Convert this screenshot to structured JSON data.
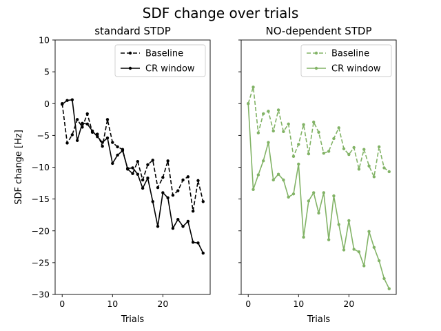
{
  "figure": {
    "suptitle": "SDF change over trials"
  },
  "chart_data": [
    {
      "type": "line",
      "title": "standard STDP",
      "xlabel": "Trials",
      "ylabel": "SDF change [Hz]",
      "xlim": [
        -1.4,
        29.4
      ],
      "ylim": [
        -30,
        10
      ],
      "xticks": [
        0,
        10,
        20
      ],
      "yticks": [
        10,
        5,
        0,
        -5,
        -10,
        -15,
        -20,
        -25,
        -30
      ],
      "legend": "top-right",
      "color": "#000000",
      "series": [
        {
          "name": "Baseline",
          "style": "dashed",
          "x": [
            0,
            1,
            2,
            3,
            4,
            5,
            6,
            7,
            8,
            9,
            10,
            11,
            12,
            13,
            14,
            15,
            16,
            17,
            18,
            19,
            20,
            21,
            22,
            23,
            24,
            25,
            26,
            27,
            28
          ],
          "values": [
            0,
            -6.2,
            -4.9,
            -2.5,
            -3.7,
            -1.6,
            -4.5,
            -4.8,
            -6.7,
            -2.5,
            -6.1,
            -6.8,
            -7.2,
            -10.3,
            -11.0,
            -9.1,
            -12.0,
            -9.6,
            -8.9,
            -13.2,
            -11.6,
            -9.0,
            -14.4,
            -13.7,
            -12.0,
            -11.5,
            -16.9,
            -12.1,
            -15.4
          ]
        },
        {
          "name": "CR window",
          "style": "solid",
          "x": [
            0,
            1,
            2,
            3,
            4,
            5,
            6,
            7,
            8,
            9,
            10,
            11,
            12,
            13,
            14,
            15,
            16,
            17,
            18,
            19,
            20,
            21,
            22,
            23,
            24,
            25,
            26,
            27,
            28
          ],
          "values": [
            -0.1,
            0.5,
            0.6,
            -5.8,
            -3.1,
            -3.2,
            -4.3,
            -5.2,
            -6.1,
            -5.4,
            -9.4,
            -8.1,
            -7.4,
            -10.2,
            -10.1,
            -11.1,
            -13.3,
            -11.7,
            -15.4,
            -19.3,
            -14.0,
            -14.8,
            -19.6,
            -18.2,
            -19.3,
            -18.5,
            -21.8,
            -21.9,
            -23.5
          ]
        }
      ]
    },
    {
      "type": "line",
      "title": "NO-dependent STDP",
      "xlabel": "Trials",
      "ylabel": "",
      "xlim": [
        -1.4,
        29.4
      ],
      "ylim": [
        -30,
        10
      ],
      "xticks": [
        0,
        10,
        20
      ],
      "yticks": [
        10,
        5,
        0,
        -5,
        -10,
        -15,
        -20,
        -25,
        -30
      ],
      "ytick_labels_hidden": true,
      "legend": "top-right",
      "color": "#82b366",
      "series": [
        {
          "name": "Baseline",
          "style": "dashed",
          "x": [
            0,
            1,
            2,
            3,
            4,
            5,
            6,
            7,
            8,
            9,
            10,
            11,
            12,
            13,
            14,
            15,
            16,
            17,
            18,
            19,
            20,
            21,
            22,
            23,
            24,
            25,
            26,
            27,
            28
          ],
          "values": [
            0,
            2.6,
            -4.6,
            -1.6,
            -1.2,
            -4.3,
            -1.0,
            -4.4,
            -3.2,
            -8.3,
            -6.4,
            -3.3,
            -7.9,
            -2.9,
            -4.5,
            -7.8,
            -7.5,
            -5.5,
            -3.8,
            -7.1,
            -8.0,
            -6.9,
            -10.3,
            -7.2,
            -9.8,
            -11.5,
            -6.8,
            -10.1,
            -10.7
          ]
        },
        {
          "name": "CR window",
          "style": "solid",
          "x": [
            0,
            1,
            2,
            3,
            4,
            5,
            6,
            7,
            8,
            9,
            10,
            11,
            12,
            13,
            14,
            15,
            16,
            17,
            18,
            19,
            20,
            21,
            22,
            23,
            24,
            25,
            26,
            27,
            28
          ],
          "values": [
            0,
            -13.5,
            -11.2,
            -9.0,
            -6.1,
            -12.0,
            -11.1,
            -12.0,
            -14.7,
            -14.2,
            -9.5,
            -21.0,
            -15.3,
            -14.0,
            -17.2,
            -14.0,
            -21.4,
            -14.5,
            -19.0,
            -23.0,
            -18.4,
            -22.9,
            -23.3,
            -25.5,
            -20.1,
            -22.6,
            -24.7,
            -27.5,
            -29.1
          ]
        }
      ]
    }
  ]
}
